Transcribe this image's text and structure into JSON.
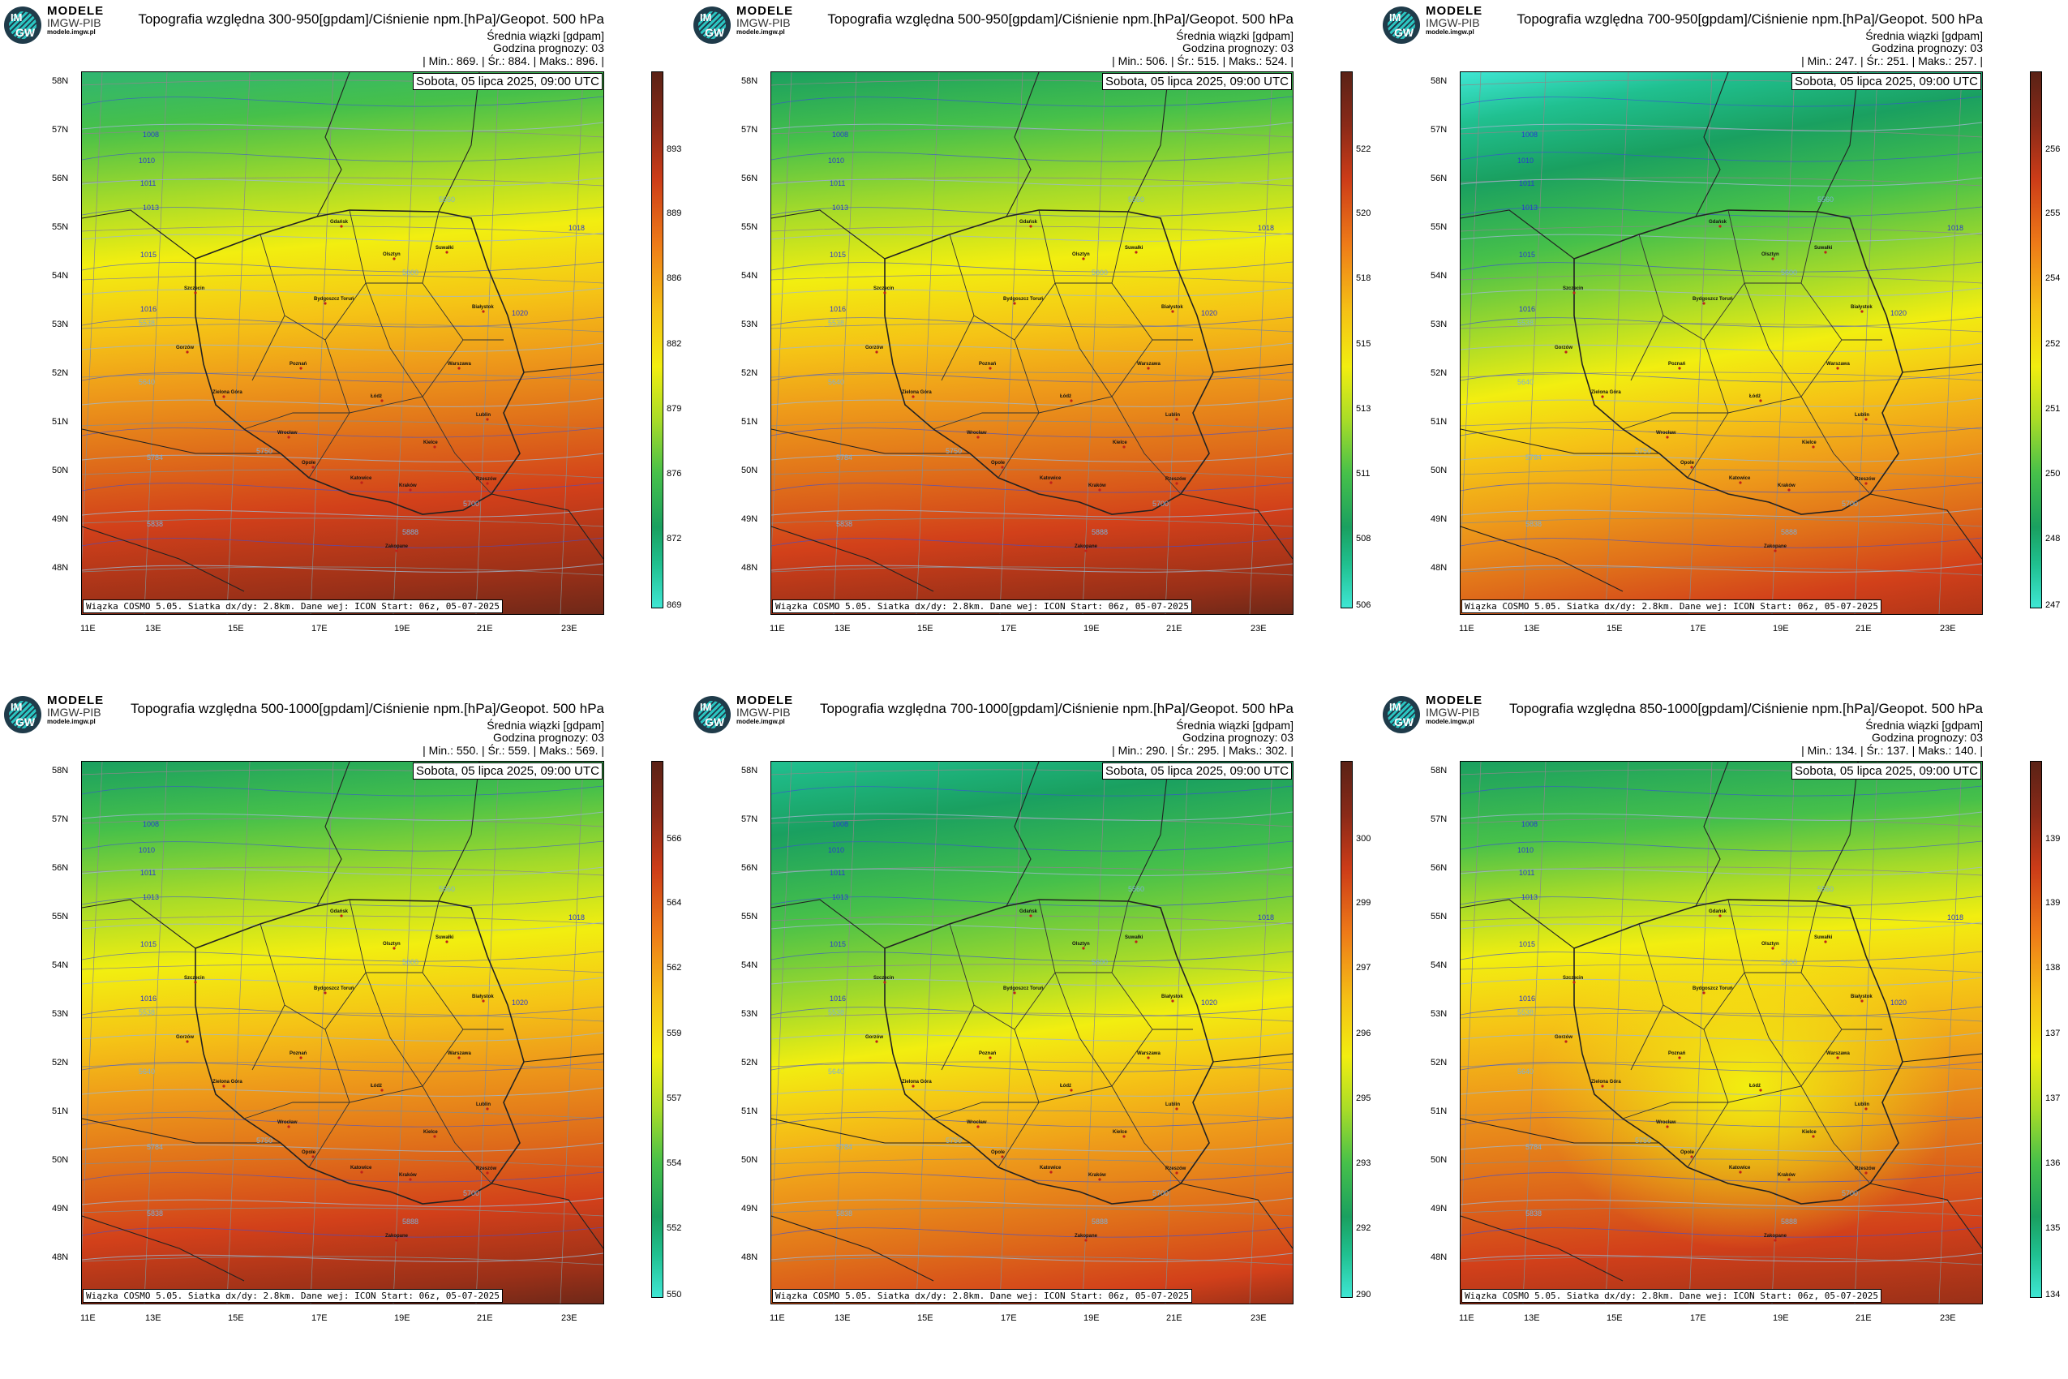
{
  "brand": {
    "top": "MODELE",
    "mid": "IMGW-PIB",
    "url": "modele.imgw.pl",
    "logo_top": "IM",
    "logo_bottom": "GW"
  },
  "common": {
    "subtitle1": "Średnia wiązki [gdpam]",
    "subtitle2": "Godzina prognozy: 03",
    "date": "Sobota, 05 lipca 2025, 09:00 UTC",
    "footer": "Wiązka COSMO 5.05. Siatka dx/dy: 2.8km. Dane wej: ICON Start: 06z, 05-07-2025",
    "lat_labels": [
      "58N",
      "57N",
      "56N",
      "55N",
      "54N",
      "53N",
      "52N",
      "51N",
      "50N",
      "49N",
      "48N"
    ],
    "lon_labels": [
      "11E",
      "13E",
      "15E",
      "17E",
      "19E",
      "21E",
      "23E"
    ],
    "cities": [
      "Gdańsk",
      "Olsztyn",
      "Suwałki",
      "Szczecin",
      "Bydgoszcz Toruń",
      "Białystok",
      "Gorzów",
      "Poznań",
      "Warszawa",
      "Zielona Góra",
      "Łódź",
      "Lublin",
      "Wrocław",
      "Kielce",
      "Opole",
      "Katowice",
      "Kraków",
      "Rzeszów",
      "Zakopane"
    ],
    "isobar_labels": [
      "1008",
      "1010",
      "1011",
      "1013",
      "1015",
      "1016",
      "1018",
      "1020"
    ],
    "geopot_labels": [
      "5538",
      "5560",
      "5600",
      "5640",
      "5700",
      "5750",
      "5784",
      "5838",
      "5888"
    ]
  },
  "colors": {
    "teal": "#3fe6d3",
    "dark_green": "#1aa060",
    "green": "#46c04a",
    "yellow": "#f2ee10",
    "orange": "#ee9a1a",
    "red": "#d2401a",
    "dark_red": "#7a2a1c"
  },
  "panels": [
    {
      "title": "Topografia względna 300-950[gpdam]/Ciśnienie npm.[hPa]/Geopot. 500 hPa",
      "stats": "| Min.:    869. | Śr.:    884. | Maks.:    896. |",
      "scale": [
        "893",
        "889",
        "886",
        "882",
        "879",
        "876",
        "872",
        "869"
      ]
    },
    {
      "title": "Topografia względna 500-950[gpdam]/Ciśnienie npm.[hPa]/Geopot. 500 hPa",
      "stats": "| Min.:    506. | Śr.:    515. | Maks.:    524. |",
      "scale": [
        "522",
        "520",
        "518",
        "515",
        "513",
        "511",
        "508",
        "506"
      ]
    },
    {
      "title": "Topografia względna 700-950[gpdam]/Ciśnienie npm.[hPa]/Geopot. 500 hPa",
      "stats": "| Min.:    247. | Śr.:    251. | Maks.:    257. |",
      "scale": [
        "256",
        "255",
        "254",
        "252",
        "251",
        "250",
        "248",
        "247"
      ]
    },
    {
      "title": "Topografia względna 500-1000[gpdam]/Ciśnienie npm.[hPa]/Geopot. 500 hPa",
      "stats": "| Min.:    550. | Śr.:    559. | Maks.:    569. |",
      "scale": [
        "566",
        "564",
        "562",
        "559",
        "557",
        "554",
        "552",
        "550"
      ]
    },
    {
      "title": "Topografia względna 700-1000[gpdam]/Ciśnienie npm.[hPa]/Geopot. 500 hPa",
      "stats": "| Min.:    290. | Śr.:    295. | Maks.:    302. |",
      "scale": [
        "300",
        "299",
        "297",
        "296",
        "295",
        "293",
        "292",
        "290"
      ]
    },
    {
      "title": "Topografia względna 850-1000[gpdam]/Ciśnienie npm.[hPa]/Geopot. 500 hPa",
      "stats": "| Min.:    134. | Śr.:    137. | Maks.:    140. |",
      "scale": [
        "139",
        "139",
        "138",
        "137",
        "137",
        "136",
        "135",
        "134"
      ]
    }
  ]
}
